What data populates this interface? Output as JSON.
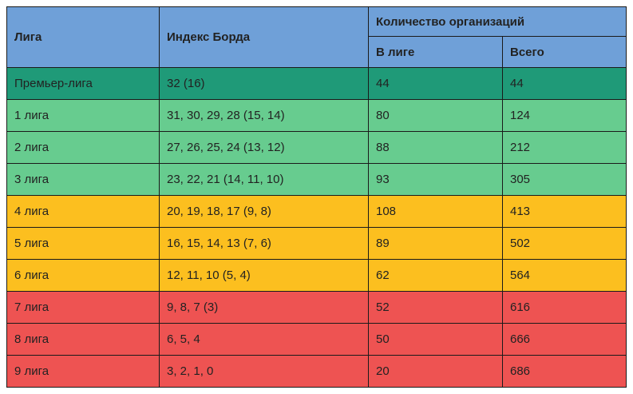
{
  "colors": {
    "header": "#6fa0d8",
    "tier_premier": "#1f9a78",
    "tier_green": "#67cc8f",
    "tier_yellow": "#fcbf1f",
    "tier_red": "#ee5352"
  },
  "header": {
    "league": "Лига",
    "borda_index": "Индекс Борда",
    "org_count": "Количество организаций",
    "in_league": "В лиге",
    "total": "Всего"
  },
  "rows": [
    {
      "league": "Премьер-лига",
      "index": "32 (16)",
      "in_league": "44",
      "total": "44",
      "tier": "premier"
    },
    {
      "league": "1 лига",
      "index": "31, 30, 29, 28 (15, 14)",
      "in_league": "80",
      "total": "124",
      "tier": "green"
    },
    {
      "league": "2 лига",
      "index": "27, 26, 25, 24 (13, 12)",
      "in_league": "88",
      "total": "212",
      "tier": "green"
    },
    {
      "league": "3 лига",
      "index": "23, 22, 21 (14, 11, 10)",
      "in_league": "93",
      "total": "305",
      "tier": "green"
    },
    {
      "league": "4 лига",
      "index": "20, 19, 18, 17 (9, 8)",
      "in_league": "108",
      "total": "413",
      "tier": "yellow"
    },
    {
      "league": "5 лига",
      "index": "16, 15, 14, 13 (7, 6)",
      "in_league": "89",
      "total": "502",
      "tier": "yellow"
    },
    {
      "league": "6 лига",
      "index": "12, 11, 10 (5, 4)",
      "in_league": "62",
      "total": "564",
      "tier": "yellow"
    },
    {
      "league": "7 лига",
      "index": "9, 8, 7 (3)",
      "in_league": "52",
      "total": "616",
      "tier": "red"
    },
    {
      "league": "8 лига",
      "index": "6, 5, 4",
      "in_league": "50",
      "total": "666",
      "tier": "red"
    },
    {
      "league": "9 лига",
      "index": "3, 2, 1, 0",
      "in_league": "20",
      "total": "686",
      "tier": "red"
    }
  ]
}
